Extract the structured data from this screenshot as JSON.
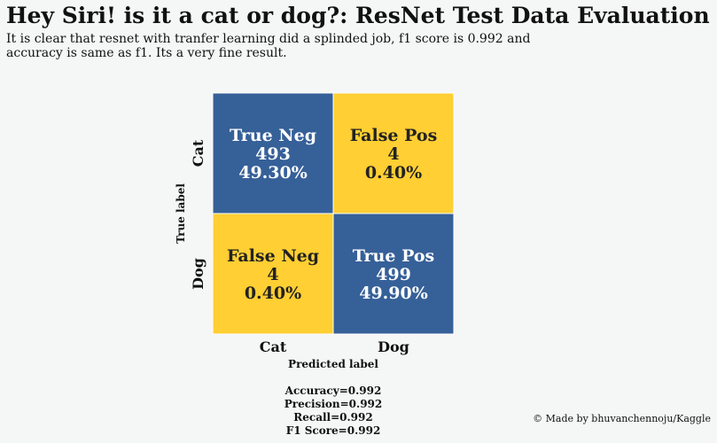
{
  "header": {
    "title": "Hey Siri! is it a cat or dog?: ResNet Test Data Evaluation",
    "subtitle": "It is clear that resnet with tranfer learning did a splinded job, f1 score is 0.992 and accuracy is same as f1. Its a very fine result."
  },
  "chart_data": {
    "type": "heatmap",
    "x_categories": [
      "Cat",
      "Dog"
    ],
    "y_categories": [
      "Cat",
      "Dog"
    ],
    "xlabel": "Predicted label",
    "ylabel": "True label",
    "cells": [
      {
        "row": 0,
        "col": 0,
        "name": "True Neg",
        "count": 493,
        "percent": "49.30%",
        "color": "#366098",
        "text_color": "#ffffff"
      },
      {
        "row": 0,
        "col": 1,
        "name": "False Pos",
        "count": 4,
        "percent": "0.40%",
        "color": "#ffcf33",
        "text_color": "#222222"
      },
      {
        "row": 1,
        "col": 0,
        "name": "False Neg",
        "count": 4,
        "percent": "0.40%",
        "color": "#ffcf33",
        "text_color": "#222222"
      },
      {
        "row": 1,
        "col": 1,
        "name": "True Pos",
        "count": 499,
        "percent": "49.90%",
        "color": "#366098",
        "text_color": "#ffffff"
      }
    ]
  },
  "metrics": {
    "accuracy": "Accuracy=0.992",
    "precision": "Precision=0.992",
    "recall": "Recall=0.992",
    "f1": "F1 Score=0.992"
  },
  "credit": "© Made by bhuvanchennoju/Kaggle"
}
